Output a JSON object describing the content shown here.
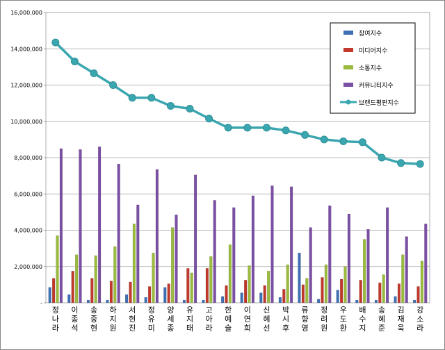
{
  "chart_data": {
    "type": "bar",
    "title": "",
    "xlabel": "",
    "ylabel": "",
    "ylim": [
      0,
      16000000
    ],
    "yticks": [
      "-",
      "2,000,000",
      "4,000,000",
      "6,000,000",
      "8,000,000",
      "10,000,000",
      "12,000,000",
      "14,000,000",
      "16,000,000"
    ],
    "grid": true,
    "legend_position": "top-right",
    "categories": [
      "정나라",
      "이종석",
      "송중현",
      "하지원",
      "서현진",
      "정유미",
      "양세종",
      "유지태",
      "고아라",
      "한예슬",
      "이연희",
      "신혜선",
      "박시후",
      "류향영",
      "정려원",
      "우도환",
      "배수지",
      "송혜준",
      "김재욱",
      "강소라"
    ],
    "series": [
      {
        "name": "참여지수",
        "type": "bar",
        "color": "#3f6fb5",
        "values": [
          850000,
          450000,
          150000,
          150000,
          450000,
          300000,
          850000,
          150000,
          150000,
          350000,
          550000,
          550000,
          300000,
          2750000,
          200000,
          700000,
          150000,
          150000,
          350000,
          150000
        ]
      },
      {
        "name": "미디어지수",
        "type": "bar",
        "color": "#c0392b",
        "values": [
          1350000,
          1750000,
          1350000,
          1200000,
          1150000,
          900000,
          1050000,
          1900000,
          1900000,
          950000,
          1250000,
          950000,
          750000,
          1000000,
          1400000,
          1300000,
          1250000,
          1100000,
          1050000,
          900000
        ]
      },
      {
        "name": "소통지수",
        "type": "bar",
        "color": "#9bbb3d",
        "values": [
          3700000,
          2650000,
          2600000,
          3100000,
          4350000,
          2750000,
          4150000,
          1650000,
          2550000,
          3200000,
          2050000,
          1750000,
          2100000,
          1350000,
          2100000,
          2000000,
          3500000,
          1550000,
          2650000,
          2300000
        ]
      },
      {
        "name": "커뮤니티지수",
        "type": "bar",
        "color": "#7b4fa5",
        "values": [
          8500000,
          8450000,
          8600000,
          7650000,
          5400000,
          7350000,
          4850000,
          7050000,
          5650000,
          5250000,
          5900000,
          6450000,
          6400000,
          4150000,
          5350000,
          4900000,
          4050000,
          5250000,
          3650000,
          4350000
        ]
      },
      {
        "name": "브랜드평판지수",
        "type": "line",
        "color": "#3aa6b0",
        "values": [
          14350000,
          13300000,
          12650000,
          12000000,
          11300000,
          11300000,
          10850000,
          10700000,
          10150000,
          9650000,
          9650000,
          9650000,
          9500000,
          9250000,
          9000000,
          8900000,
          8850000,
          8000000,
          7700000,
          7650000
        ]
      }
    ]
  }
}
